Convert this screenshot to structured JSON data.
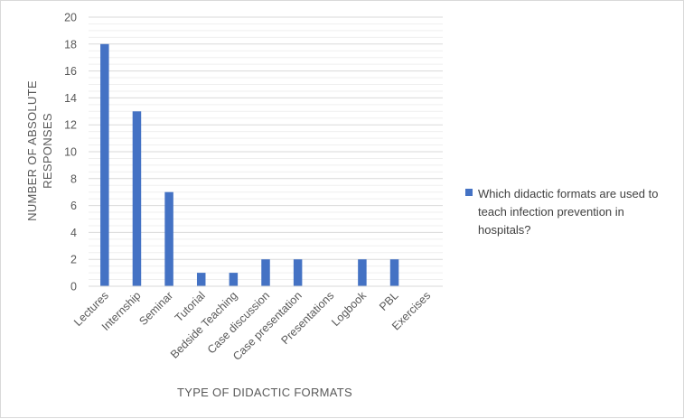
{
  "chart_data": {
    "type": "bar",
    "categories": [
      "Lectures",
      "Internship",
      "Seminar",
      "Tutorial",
      "Bedside Teaching",
      "Case discussion",
      "Case presentation",
      "Presentations",
      "Logbook",
      "PBL",
      "Exercises"
    ],
    "series": [
      {
        "name": "Which didactic formats are used to teach infection prevention in hospitals?",
        "values": [
          18,
          13,
          7,
          1,
          1,
          2,
          2,
          0,
          2,
          2,
          0
        ],
        "color": "#4472c4"
      }
    ],
    "title": "",
    "xlabel": "TYPE OF DIDACTIC FORMATS",
    "ylabel": "NUMBER OF ABSOLUTE RESPONSES",
    "ylim": [
      0,
      20
    ],
    "yticks": [
      0,
      2,
      4,
      6,
      8,
      10,
      12,
      14,
      16,
      18,
      20
    ],
    "grid": true,
    "legend_position": "right"
  },
  "legend": {
    "lines": [
      "Which didactic formats are used to",
      "teach infection prevention in",
      "hospitals?"
    ]
  },
  "ylabel_lines": [
    "NUMBER OF ABSOLUTE",
    "RESPONSES"
  ]
}
